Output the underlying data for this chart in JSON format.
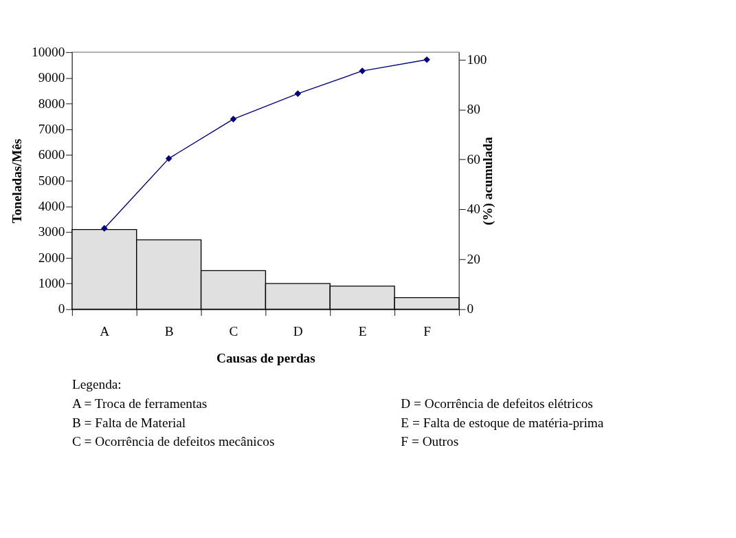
{
  "chart_data": {
    "type": "bar",
    "categories": [
      "A",
      "B",
      "C",
      "D",
      "E",
      "F"
    ],
    "series": [
      {
        "color": "#e0e0e0",
        "values": [
          3100,
          2700,
          1500,
          1000,
          900,
          450
        ]
      },
      {
        "type": "line",
        "axis": "y2",
        "color": "#000080",
        "values": [
          32.4,
          60.4,
          76.2,
          86.4,
          95.5,
          100
        ]
      }
    ],
    "ylim": [
      0,
      10000
    ],
    "yticks": [
      0,
      1000,
      2000,
      3000,
      4000,
      5000,
      6000,
      7000,
      8000,
      9000,
      10000
    ],
    "y2lim": [
      0,
      103
    ],
    "y2ticks": [
      0,
      20,
      40,
      60,
      80,
      100
    ],
    "xlabel": "Causas de perdas",
    "ylabel": "Toneladas/Mês",
    "y2label": "(%) acumulada",
    "marker": "diamond",
    "annotations": [
      "Legenda:",
      "A = Troca de ferramentas",
      "B = Falta de Material",
      "C = Ocorrência de defeitos mecânicos",
      "D = Ocorrência de defeitos elétricos",
      "E = Falta de estoque de matéria-prima",
      "F = Outros"
    ]
  }
}
